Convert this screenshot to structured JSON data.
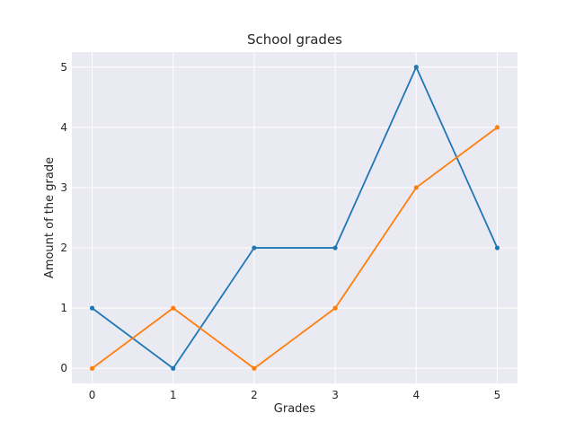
{
  "chart_data": {
    "type": "line",
    "title": "School grades",
    "xlabel": "Grades",
    "ylabel": "Amount of the grade",
    "x": [
      0,
      1,
      2,
      3,
      4,
      5
    ],
    "xticks": [
      "0",
      "1",
      "2",
      "3",
      "4",
      "5"
    ],
    "yticks": [
      "0",
      "1",
      "2",
      "3",
      "4",
      "5"
    ],
    "xlim": [
      -0.25,
      5.25
    ],
    "ylim": [
      -0.25,
      5.25
    ],
    "grid": true,
    "background_color": "#EAEAF2",
    "series": [
      {
        "values": [
          1,
          0,
          2,
          2,
          5,
          2
        ],
        "color": "#1f77b4"
      },
      {
        "values": [
          0,
          1,
          0,
          1,
          3,
          4
        ],
        "color": "#ff7f0e"
      }
    ]
  }
}
